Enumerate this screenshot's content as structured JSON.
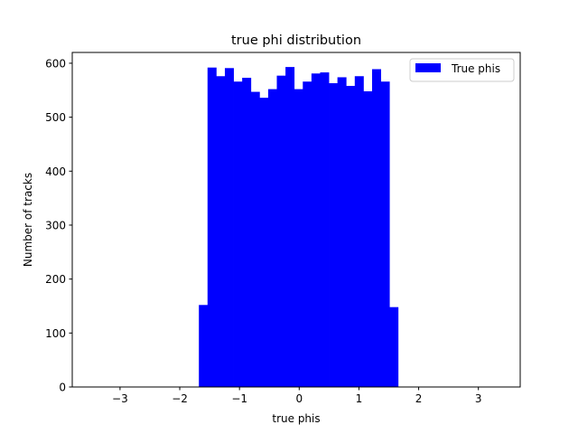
{
  "chart_data": {
    "type": "bar",
    "title": "true phi distribution",
    "xlabel": "true phis",
    "ylabel": "Number of tracks",
    "xlim": [
      -3.8,
      3.7
    ],
    "ylim": [
      0,
      620
    ],
    "xticks": [
      -3,
      -2,
      -1,
      0,
      1,
      2,
      3
    ],
    "xtick_labels": [
      "−3",
      "−2",
      "−1",
      "0",
      "1",
      "2",
      "3"
    ],
    "yticks": [
      0,
      100,
      200,
      300,
      400,
      500,
      600
    ],
    "ytick_labels": [
      "0",
      "100",
      "200",
      "300",
      "400",
      "500",
      "600"
    ],
    "bin_edges": [
      -1.68,
      -1.535,
      -1.39,
      -1.245,
      -1.1,
      -0.955,
      -0.81,
      -0.665,
      -0.52,
      -0.375,
      -0.23,
      -0.085,
      0.06,
      0.205,
      0.35,
      0.495,
      0.64,
      0.785,
      0.93,
      1.075,
      1.22,
      1.365,
      1.51,
      1.655
    ],
    "series": [
      {
        "name": "True phis",
        "color": "#0000ff",
        "values": [
          152,
          592,
          576,
          591,
          566,
          573,
          547,
          536,
          552,
          577,
          593,
          552,
          566,
          581,
          583,
          563,
          574,
          558,
          576,
          548,
          589,
          566,
          148
        ]
      }
    ],
    "legend": {
      "position": "upper-right"
    },
    "grid": false
  }
}
